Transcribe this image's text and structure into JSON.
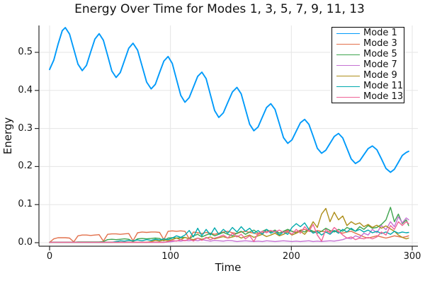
{
  "chart_data": {
    "type": "line",
    "title": "Energy Over Time for Modes 1, 3, 5, 7, 9, 11, 13",
    "xlabel": "Time",
    "ylabel": "Energy",
    "xlim": [
      -9,
      305
    ],
    "ylim": [
      -0.01,
      0.57
    ],
    "xticks": [
      0,
      100,
      200,
      300
    ],
    "yticks": [
      0.0,
      0.1,
      0.2,
      0.3,
      0.4,
      0.5
    ],
    "grid": true,
    "legend_position": "top-right-inside",
    "legend_labels": [
      "Mode 1",
      "Mode 3",
      "Mode 5",
      "Mode 7",
      "Mode 9",
      "Mode 11",
      "Mode 13"
    ],
    "x": [
      0,
      3.5,
      7,
      10.5,
      13,
      16.5,
      20,
      23.5,
      27,
      30.5,
      34,
      37.5,
      41,
      44.5,
      48,
      51.5,
      55,
      58.5,
      62,
      65.5,
      69,
      72.75,
      76.5,
      80.25,
      84,
      87.5,
      91,
      94.5,
      98,
      101.5,
      105,
      108.5,
      112,
      115.5,
      119,
      122.5,
      126,
      129.5,
      133,
      136.5,
      140,
      143.75,
      147.5,
      151.25,
      155,
      158.5,
      162,
      165.5,
      169,
      172.5,
      176,
      179.5,
      183,
      186.5,
      190,
      193.5,
      197,
      200.5,
      204,
      207.5,
      211,
      214.5,
      218,
      221.5,
      225,
      228.5,
      232,
      235.5,
      239,
      242.5,
      246,
      249.5,
      253,
      256.5,
      260,
      263.5,
      267,
      270.75,
      274.5,
      278.25,
      282,
      285.25,
      288.5,
      291.75,
      295,
      297
    ],
    "series": [
      {
        "name": "Mode 1",
        "color": "#009AFA",
        "values": [
          0.455,
          0.48,
          0.521,
          0.557,
          0.565,
          0.548,
          0.509,
          0.469,
          0.452,
          0.466,
          0.501,
          0.535,
          0.549,
          0.532,
          0.492,
          0.451,
          0.434,
          0.447,
          0.479,
          0.511,
          0.524,
          0.506,
          0.464,
          0.422,
          0.404,
          0.416,
          0.447,
          0.477,
          0.489,
          0.471,
          0.429,
          0.387,
          0.369,
          0.381,
          0.409,
          0.437,
          0.448,
          0.431,
          0.389,
          0.347,
          0.329,
          0.341,
          0.369,
          0.396,
          0.408,
          0.391,
          0.351,
          0.311,
          0.294,
          0.304,
          0.33,
          0.355,
          0.365,
          0.35,
          0.313,
          0.276,
          0.261,
          0.27,
          0.293,
          0.315,
          0.324,
          0.311,
          0.28,
          0.248,
          0.235,
          0.243,
          0.261,
          0.279,
          0.287,
          0.275,
          0.248,
          0.22,
          0.208,
          0.215,
          0.231,
          0.247,
          0.254,
          0.244,
          0.22,
          0.195,
          0.185,
          0.193,
          0.211,
          0.229,
          0.237,
          0.24
        ]
      },
      {
        "name": "Mode 3",
        "color": "#E2704B",
        "values": [
          0.001,
          0.01,
          0.013,
          0.013,
          0.013,
          0.012,
          0.002,
          0.018,
          0.02,
          0.02,
          0.019,
          0.02,
          0.021,
          0.004,
          0.022,
          0.023,
          0.023,
          0.022,
          0.023,
          0.024,
          0.005,
          0.026,
          0.028,
          0.027,
          0.028,
          0.028,
          0.027,
          0.008,
          0.03,
          0.031,
          0.03,
          0.031,
          0.03,
          0.01,
          0.028,
          0.026,
          0.024,
          0.027,
          0.025,
          0.022,
          0.025,
          0.028,
          0.03,
          0.026,
          0.024,
          0.028,
          0.03,
          0.027,
          0.025,
          0.022,
          0.026,
          0.03,
          0.032,
          0.028,
          0.025,
          0.03,
          0.032,
          0.03,
          0.028,
          0.033,
          0.035,
          0.03,
          0.028,
          0.032,
          0.03,
          0.028,
          0.03,
          0.032,
          0.028,
          0.025,
          0.028,
          0.03,
          0.025,
          0.02,
          0.015,
          0.012,
          0.015,
          0.018,
          0.015,
          0.012,
          0.015,
          0.018,
          0.016,
          0.014,
          0.016,
          0.018
        ]
      },
      {
        "name": "Mode 5",
        "color": "#3EA44E",
        "values": [
          0.001,
          0.001,
          0.001,
          0.001,
          0.001,
          0.001,
          0.001,
          0.002,
          0.002,
          0.002,
          0.002,
          0.002,
          0.002,
          0.003,
          0.008,
          0.009,
          0.008,
          0.009,
          0.01,
          0.009,
          0.003,
          0.01,
          0.011,
          0.01,
          0.011,
          0.012,
          0.011,
          0.005,
          0.012,
          0.013,
          0.012,
          0.013,
          0.014,
          0.01,
          0.018,
          0.022,
          0.015,
          0.02,
          0.024,
          0.018,
          0.022,
          0.027,
          0.022,
          0.018,
          0.025,
          0.03,
          0.022,
          0.028,
          0.033,
          0.025,
          0.03,
          0.035,
          0.028,
          0.033,
          0.025,
          0.03,
          0.035,
          0.03,
          0.025,
          0.032,
          0.028,
          0.035,
          0.03,
          0.025,
          0.03,
          0.038,
          0.032,
          0.028,
          0.035,
          0.03,
          0.04,
          0.035,
          0.03,
          0.042,
          0.035,
          0.045,
          0.038,
          0.04,
          0.048,
          0.06,
          0.093,
          0.055,
          0.075,
          0.05,
          0.06,
          0.045
        ]
      },
      {
        "name": "Mode 7",
        "color": "#C571D3",
        "values": [
          0.001,
          0.001,
          0.001,
          0.001,
          0.001,
          0.001,
          0.001,
          0.001,
          0.001,
          0.001,
          0.001,
          0.001,
          0.001,
          0.001,
          0.001,
          0.001,
          0.001,
          0.001,
          0.001,
          0.001,
          0.001,
          0.001,
          0.001,
          0.001,
          0.001,
          0.001,
          0.001,
          0.001,
          0.002,
          0.003,
          0.005,
          0.004,
          0.006,
          0.005,
          0.007,
          0.005,
          0.008,
          0.006,
          0.004,
          0.006,
          0.005,
          0.004,
          0.006,
          0.005,
          0.003,
          0.004,
          0.005,
          0.004,
          0.003,
          0.004,
          0.003,
          0.005,
          0.004,
          0.003,
          0.004,
          0.005,
          0.004,
          0.003,
          0.004,
          0.003,
          0.004,
          0.005,
          0.003,
          0.004,
          0.003,
          0.004,
          0.005,
          0.004,
          0.006,
          0.008,
          0.012,
          0.01,
          0.018,
          0.014,
          0.025,
          0.02,
          0.035,
          0.026,
          0.045,
          0.034,
          0.055,
          0.042,
          0.068,
          0.052,
          0.065,
          0.06
        ]
      },
      {
        "name": "Mode 9",
        "color": "#AD8E19",
        "values": [
          0.001,
          0.001,
          0.001,
          0.001,
          0.001,
          0.001,
          0.001,
          0.001,
          0.001,
          0.001,
          0.001,
          0.001,
          0.001,
          0.001,
          0.001,
          0.001,
          0.001,
          0.001,
          0.001,
          0.001,
          0.001,
          0.001,
          0.001,
          0.001,
          0.003,
          0.006,
          0.004,
          0.007,
          0.005,
          0.008,
          0.012,
          0.008,
          0.014,
          0.01,
          0.008,
          0.012,
          0.009,
          0.012,
          0.015,
          0.01,
          0.013,
          0.016,
          0.012,
          0.015,
          0.018,
          0.012,
          0.016,
          0.02,
          0.014,
          0.018,
          0.022,
          0.016,
          0.02,
          0.025,
          0.018,
          0.022,
          0.028,
          0.02,
          0.025,
          0.03,
          0.022,
          0.035,
          0.055,
          0.04,
          0.075,
          0.09,
          0.055,
          0.08,
          0.06,
          0.07,
          0.045,
          0.055,
          0.048,
          0.052,
          0.042,
          0.048,
          0.04,
          0.046,
          0.038,
          0.044,
          0.036,
          0.03,
          0.02,
          0.014,
          0.01,
          0.012
        ]
      },
      {
        "name": "Mode 11",
        "color": "#00A9AD",
        "values": [
          0.001,
          0.001,
          0.001,
          0.001,
          0.001,
          0.001,
          0.001,
          0.001,
          0.001,
          0.001,
          0.001,
          0.001,
          0.001,
          0.001,
          0.001,
          0.001,
          0.003,
          0.005,
          0.004,
          0.006,
          0.005,
          0.007,
          0.005,
          0.008,
          0.006,
          0.009,
          0.007,
          0.01,
          0.008,
          0.012,
          0.018,
          0.014,
          0.02,
          0.032,
          0.015,
          0.038,
          0.018,
          0.035,
          0.02,
          0.039,
          0.022,
          0.035,
          0.025,
          0.04,
          0.028,
          0.042,
          0.03,
          0.038,
          0.025,
          0.032,
          0.022,
          0.035,
          0.025,
          0.03,
          0.02,
          0.028,
          0.022,
          0.04,
          0.05,
          0.042,
          0.052,
          0.035,
          0.025,
          0.03,
          0.02,
          0.028,
          0.022,
          0.032,
          0.025,
          0.035,
          0.028,
          0.038,
          0.03,
          0.035,
          0.028,
          0.033,
          0.026,
          0.03,
          0.024,
          0.028,
          0.022,
          0.03,
          0.025,
          0.028,
          0.026,
          0.027
        ]
      },
      {
        "name": "Mode 13",
        "color": "#EF6397",
        "values": [
          0.001,
          0.001,
          0.001,
          0.001,
          0.001,
          0.001,
          0.001,
          0.001,
          0.001,
          0.001,
          0.001,
          0.001,
          0.001,
          0.001,
          0.001,
          0.001,
          0.001,
          0.001,
          0.001,
          0.001,
          0.001,
          0.001,
          0.001,
          0.001,
          0.001,
          0.001,
          0.001,
          0.001,
          0.003,
          0.006,
          0.004,
          0.008,
          0.005,
          0.01,
          0.004,
          0.012,
          0.006,
          0.014,
          0.008,
          0.012,
          0.015,
          0.02,
          0.012,
          0.025,
          0.015,
          0.022,
          0.01,
          0.018,
          0.003,
          0.025,
          0.03,
          0.026,
          0.032,
          0.028,
          0.033,
          0.027,
          0.03,
          0.022,
          0.035,
          0.025,
          0.042,
          0.03,
          0.048,
          0.02,
          0.004,
          0.035,
          0.025,
          0.04,
          0.03,
          0.02,
          0.012,
          0.015,
          0.008,
          0.012,
          0.01,
          0.014,
          0.01,
          0.015,
          0.028,
          0.02,
          0.045,
          0.035,
          0.055,
          0.045,
          0.055,
          0.05
        ]
      }
    ],
    "style_colors": {
      "grid": "#E5E5E5",
      "spine": "#2A2A2A",
      "text": "#151515",
      "legend_border": "#000000",
      "background": "#FFFFFF"
    }
  }
}
